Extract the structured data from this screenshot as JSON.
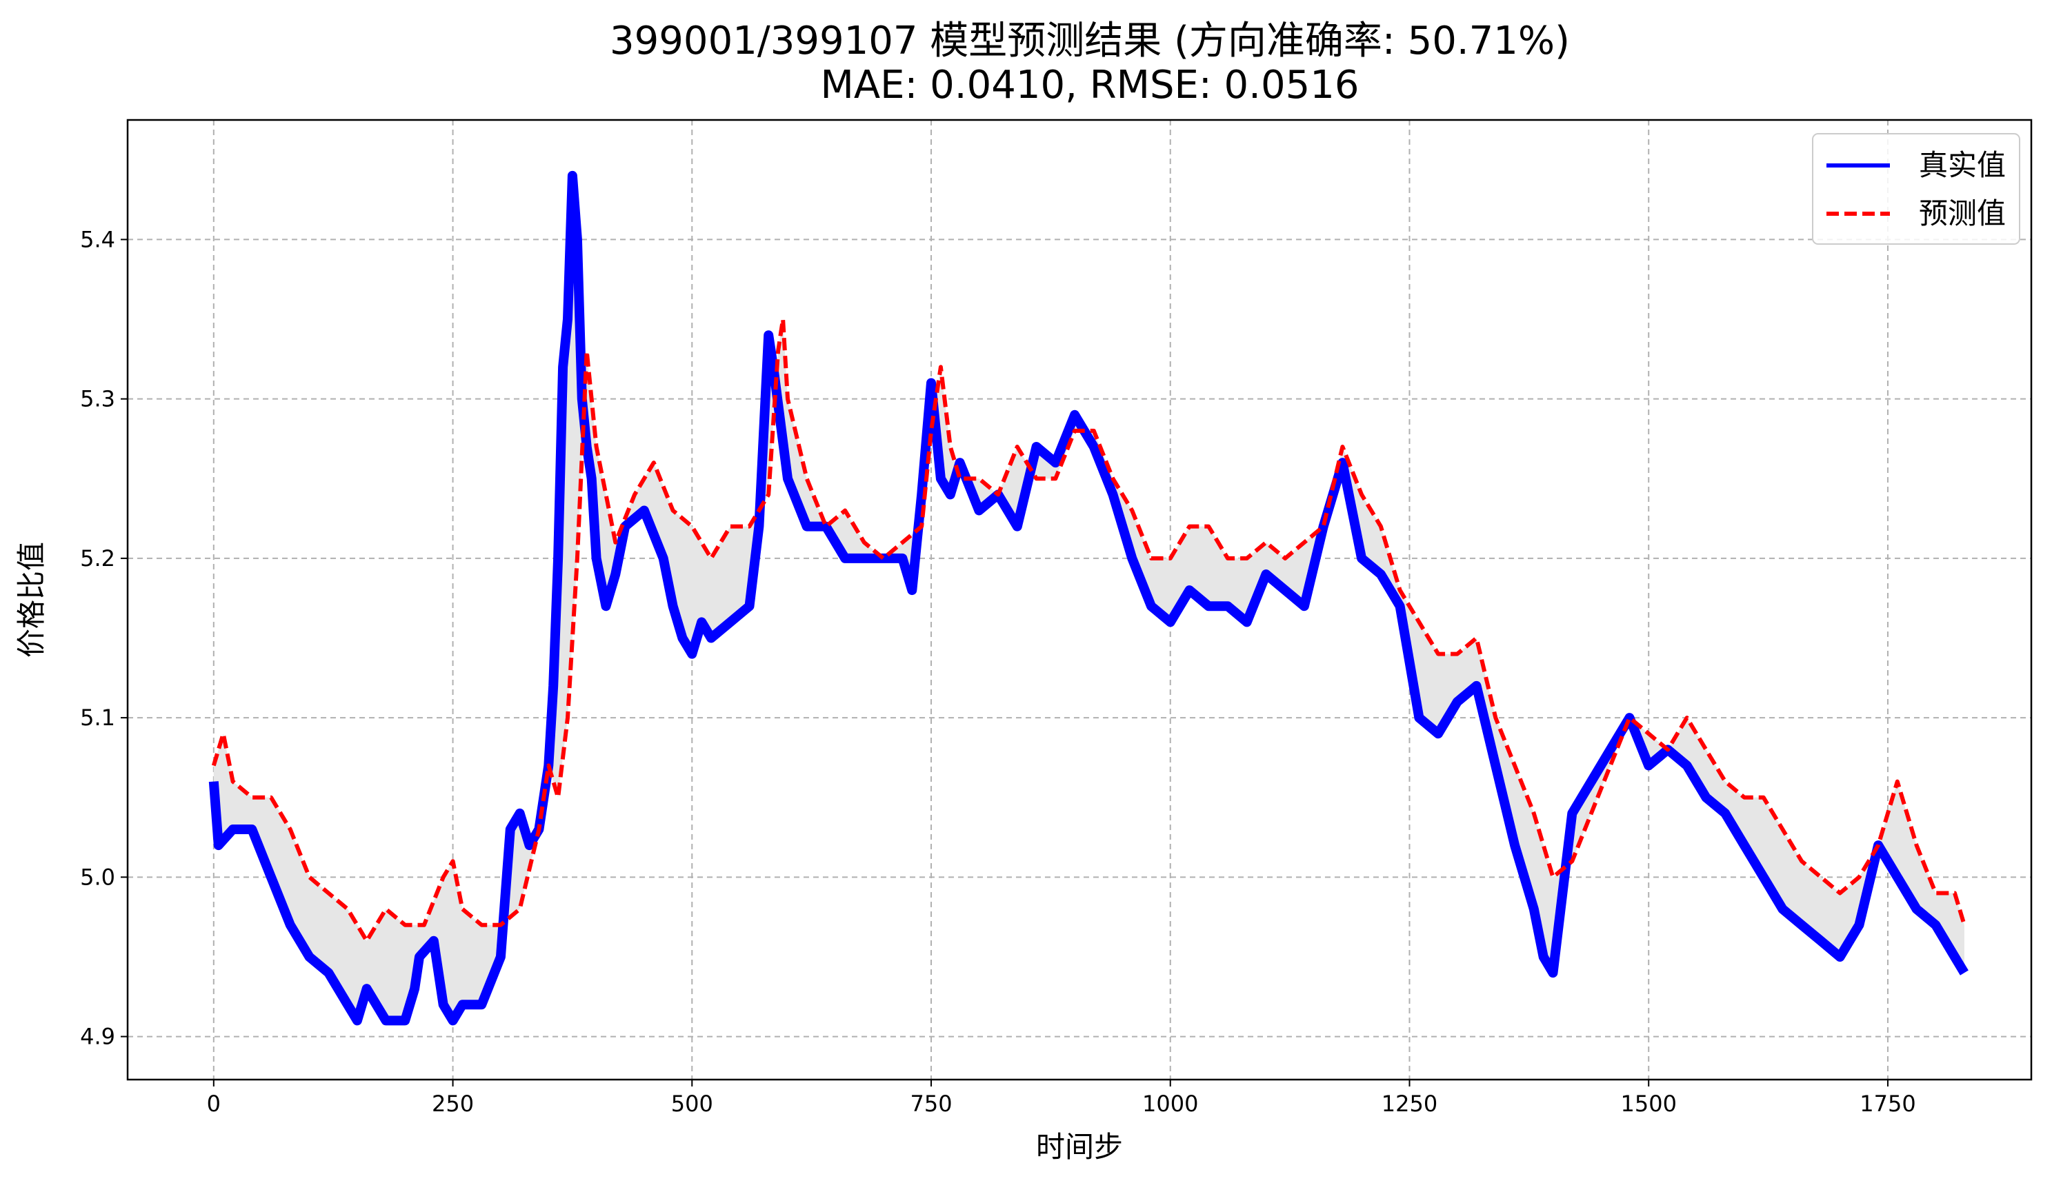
{
  "chart_data": {
    "type": "line",
    "title": "399001/399107 模型预测结果 (方向准确率: 50.71%)",
    "subtitle": "MAE: 0.0410, RMSE: 0.0516",
    "xlabel": "时间步",
    "ylabel": "价格比值",
    "xlim": [
      -90,
      1900
    ],
    "ylim": [
      4.873,
      5.475
    ],
    "x_ticks": [
      0,
      250,
      500,
      750,
      1000,
      1250,
      1500,
      1750
    ],
    "y_ticks": [
      4.9,
      5.0,
      5.1,
      5.2,
      5.3,
      5.4
    ],
    "x_tick_labels": [
      "0",
      "250",
      "500",
      "750",
      "1000",
      "1250",
      "1500",
      "1750"
    ],
    "y_tick_labels": [
      "4.9",
      "5.0",
      "5.1",
      "5.2",
      "5.3",
      "5.4"
    ],
    "grid": true,
    "legend_position": "top-right",
    "fill_between": {
      "color": "#e6e6e6"
    },
    "series": [
      {
        "name": "真实值",
        "color": "#0000ff",
        "style": "solid",
        "x": [
          0,
          5,
          20,
          40,
          60,
          80,
          100,
          120,
          140,
          150,
          160,
          170,
          180,
          200,
          210,
          215,
          230,
          240,
          250,
          260,
          280,
          300,
          310,
          320,
          330,
          340,
          350,
          355,
          360,
          365,
          370,
          375,
          380,
          385,
          390,
          395,
          400,
          410,
          420,
          430,
          450,
          470,
          480,
          490,
          500,
          510,
          520,
          540,
          560,
          570,
          580,
          585,
          600,
          620,
          640,
          660,
          680,
          700,
          720,
          730,
          740,
          750,
          760,
          770,
          780,
          800,
          820,
          840,
          860,
          880,
          900,
          920,
          940,
          960,
          980,
          1000,
          1020,
          1040,
          1060,
          1080,
          1100,
          1120,
          1140,
          1160,
          1180,
          1200,
          1220,
          1240,
          1260,
          1280,
          1300,
          1320,
          1340,
          1360,
          1380,
          1390,
          1400,
          1420,
          1440,
          1460,
          1480,
          1500,
          1520,
          1540,
          1560,
          1580,
          1600,
          1620,
          1640,
          1660,
          1680,
          1700,
          1720,
          1740,
          1760,
          1780,
          1800,
          1820,
          1830
        ],
        "values": [
          5.06,
          5.02,
          5.03,
          5.03,
          5.0,
          4.97,
          4.95,
          4.94,
          4.92,
          4.91,
          4.93,
          4.92,
          4.91,
          4.91,
          4.93,
          4.95,
          4.96,
          4.92,
          4.91,
          4.92,
          4.92,
          4.95,
          5.03,
          5.04,
          5.02,
          5.03,
          5.07,
          5.12,
          5.2,
          5.32,
          5.35,
          5.44,
          5.4,
          5.3,
          5.27,
          5.25,
          5.2,
          5.17,
          5.19,
          5.22,
          5.23,
          5.2,
          5.17,
          5.15,
          5.14,
          5.16,
          5.15,
          5.16,
          5.17,
          5.22,
          5.34,
          5.32,
          5.25,
          5.22,
          5.22,
          5.2,
          5.2,
          5.2,
          5.2,
          5.18,
          5.24,
          5.31,
          5.25,
          5.24,
          5.26,
          5.23,
          5.24,
          5.22,
          5.27,
          5.26,
          5.29,
          5.27,
          5.24,
          5.2,
          5.17,
          5.16,
          5.18,
          5.17,
          5.17,
          5.16,
          5.19,
          5.18,
          5.17,
          5.22,
          5.26,
          5.2,
          5.19,
          5.17,
          5.1,
          5.09,
          5.11,
          5.12,
          5.07,
          5.02,
          4.98,
          4.95,
          4.94,
          5.04,
          5.06,
          5.08,
          5.1,
          5.07,
          5.08,
          5.07,
          5.05,
          5.04,
          5.02,
          5.0,
          4.98,
          4.97,
          4.96,
          4.95,
          4.97,
          5.02,
          5.0,
          4.98,
          4.97,
          4.95,
          4.94
        ]
      },
      {
        "name": "预测值",
        "color": "#ff0000",
        "style": "dashed",
        "x": [
          0,
          10,
          20,
          40,
          60,
          80,
          100,
          120,
          140,
          160,
          180,
          200,
          220,
          240,
          250,
          260,
          280,
          300,
          320,
          340,
          350,
          360,
          370,
          380,
          390,
          400,
          410,
          420,
          440,
          460,
          480,
          500,
          520,
          540,
          560,
          580,
          590,
          595,
          600,
          620,
          640,
          660,
          680,
          700,
          720,
          740,
          750,
          760,
          770,
          780,
          800,
          820,
          840,
          860,
          880,
          900,
          920,
          940,
          960,
          980,
          1000,
          1020,
          1040,
          1060,
          1080,
          1100,
          1120,
          1140,
          1160,
          1180,
          1200,
          1220,
          1240,
          1260,
          1280,
          1300,
          1320,
          1340,
          1360,
          1380,
          1400,
          1420,
          1440,
          1460,
          1480,
          1500,
          1520,
          1540,
          1560,
          1580,
          1600,
          1620,
          1640,
          1660,
          1680,
          1700,
          1720,
          1740,
          1760,
          1780,
          1800,
          1820,
          1830
        ],
        "values": [
          5.07,
          5.09,
          5.06,
          5.05,
          5.05,
          5.03,
          5.0,
          4.99,
          4.98,
          4.96,
          4.98,
          4.97,
          4.97,
          5.0,
          5.01,
          4.98,
          4.97,
          4.97,
          4.98,
          5.03,
          5.07,
          5.05,
          5.1,
          5.2,
          5.33,
          5.27,
          5.24,
          5.21,
          5.24,
          5.26,
          5.23,
          5.22,
          5.2,
          5.22,
          5.22,
          5.24,
          5.33,
          5.35,
          5.3,
          5.25,
          5.22,
          5.23,
          5.21,
          5.2,
          5.21,
          5.22,
          5.28,
          5.32,
          5.27,
          5.25,
          5.25,
          5.24,
          5.27,
          5.25,
          5.25,
          5.28,
          5.28,
          5.25,
          5.23,
          5.2,
          5.2,
          5.22,
          5.22,
          5.2,
          5.2,
          5.21,
          5.2,
          5.21,
          5.22,
          5.27,
          5.24,
          5.22,
          5.18,
          5.16,
          5.14,
          5.14,
          5.15,
          5.1,
          5.07,
          5.04,
          5.0,
          5.01,
          5.04,
          5.07,
          5.1,
          5.09,
          5.08,
          5.1,
          5.08,
          5.06,
          5.05,
          5.05,
          5.03,
          5.01,
          5.0,
          4.99,
          5.0,
          5.02,
          5.06,
          5.02,
          4.99,
          4.99,
          4.97
        ]
      }
    ]
  }
}
